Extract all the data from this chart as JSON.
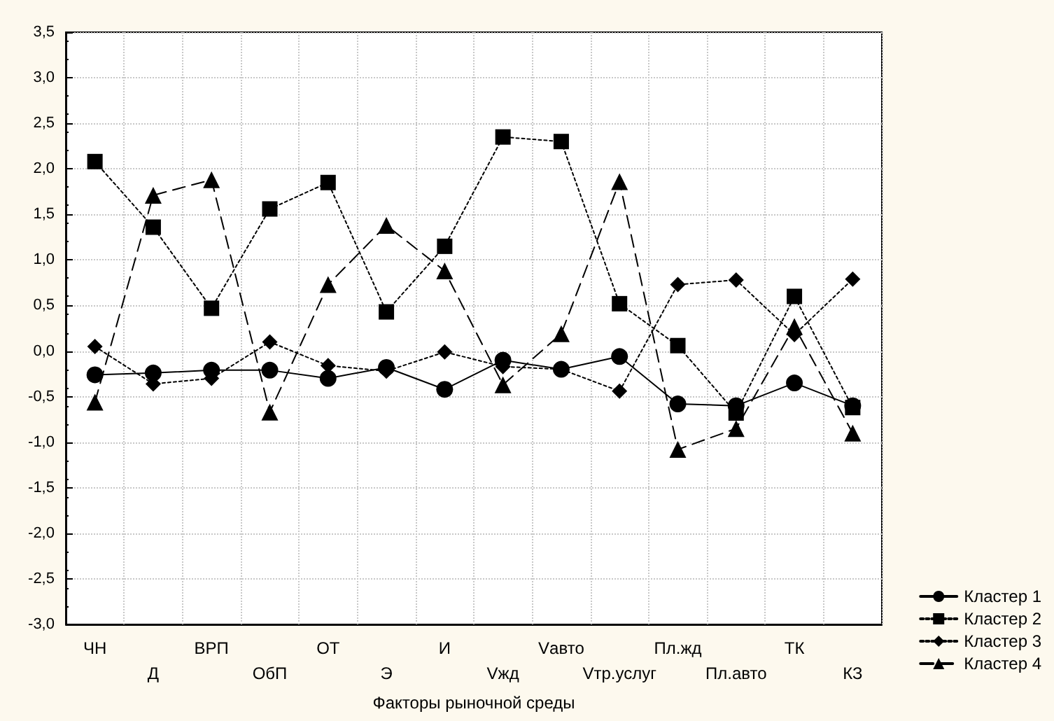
{
  "chart_data": {
    "type": "line",
    "xlabel": "Факторы рыночной среды",
    "categories": [
      "ЧН",
      "Д",
      "ВРП",
      "ОбП",
      "ОТ",
      "Э",
      "И",
      "Vжд",
      "Vавто",
      "Vтр.услуг",
      "Пл.жд",
      "Пл.авто",
      "ТК",
      "КЗ"
    ],
    "series": [
      {
        "name": "Кластер 1",
        "color": "#000000",
        "marker": "circle",
        "line_style": "solid",
        "values": [
          -0.26,
          -0.24,
          -0.21,
          -0.21,
          -0.3,
          -0.18,
          -0.42,
          -0.1,
          -0.2,
          -0.06,
          -0.58,
          -0.6,
          -0.35,
          -0.6
        ]
      },
      {
        "name": "Кластер 2",
        "color": "#000000",
        "marker": "square",
        "line_style": "dotted",
        "values": [
          2.08,
          1.36,
          0.47,
          1.56,
          1.85,
          0.43,
          1.15,
          2.35,
          2.3,
          0.52,
          0.06,
          -0.68,
          0.6,
          -0.62
        ]
      },
      {
        "name": "Кластер 3",
        "color": "#000000",
        "marker": "diamond",
        "line_style": "dotted",
        "values": [
          0.05,
          -0.36,
          -0.3,
          0.1,
          -0.16,
          -0.22,
          -0.01,
          -0.17,
          -0.2,
          -0.44,
          0.73,
          0.78,
          0.18,
          0.79
        ]
      },
      {
        "name": "Кластер 4",
        "color": "#000000",
        "marker": "triangle",
        "line_style": "dashed",
        "values": [
          -0.56,
          1.71,
          1.88,
          -0.67,
          0.73,
          1.38,
          0.88,
          -0.37,
          0.19,
          1.86,
          -1.08,
          -0.85,
          0.27,
          -0.9
        ]
      }
    ],
    "ylim": [
      -3.0,
      3.5
    ],
    "yticks": [
      {
        "value": -3.0,
        "label": "-3,0"
      },
      {
        "value": -2.5,
        "label": "-2,5"
      },
      {
        "value": -2.0,
        "label": "-2,0"
      },
      {
        "value": -1.5,
        "label": "-1,5"
      },
      {
        "value": -1.0,
        "label": "-1,0"
      },
      {
        "value": -0.5,
        "label": "-0,5"
      },
      {
        "value": 0.0,
        "label": "0,0"
      },
      {
        "value": 0.5,
        "label": "0,5"
      },
      {
        "value": 1.0,
        "label": "1,0"
      },
      {
        "value": 1.5,
        "label": "1,5"
      },
      {
        "value": 2.0,
        "label": "2,0"
      },
      {
        "value": 2.5,
        "label": "2,5"
      },
      {
        "value": 3.0,
        "label": "3,0"
      },
      {
        "value": 3.5,
        "label": "3,5"
      }
    ],
    "grid": true,
    "legend": "bottom right"
  }
}
